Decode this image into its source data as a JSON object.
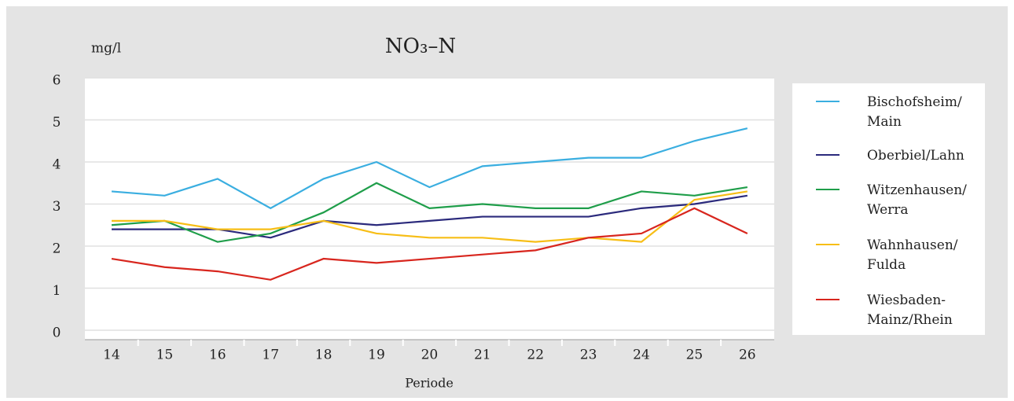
{
  "chart_data": {
    "type": "line",
    "title": "NO₃–N",
    "y_label": "mg/l",
    "x_label": "Periode",
    "categories": [
      "14",
      "15",
      "16",
      "17",
      "18",
      "19",
      "20",
      "21",
      "22",
      "23",
      "24",
      "25",
      "26"
    ],
    "ylim": [
      0,
      6
    ],
    "yticks": [
      0,
      1,
      2,
      3,
      4,
      5,
      6
    ],
    "grid": true,
    "legend": "right",
    "series": [
      {
        "name": "Bischofsheim/\nMain",
        "color": "#3aaee0",
        "values": [
          3.3,
          3.2,
          3.6,
          2.9,
          3.6,
          4.0,
          3.4,
          3.9,
          4.0,
          4.1,
          4.1,
          4.5,
          4.8
        ]
      },
      {
        "name": "Oberbiel/Lahn",
        "color": "#2b2a7c",
        "values": [
          2.4,
          2.4,
          2.4,
          2.2,
          2.6,
          2.5,
          2.6,
          2.7,
          2.7,
          2.7,
          2.9,
          3.0,
          3.2
        ]
      },
      {
        "name": "Witzenhausen/\nWerra",
        "color": "#1f9e4a",
        "values": [
          2.5,
          2.6,
          2.1,
          2.3,
          2.8,
          3.5,
          2.9,
          3.0,
          2.9,
          2.9,
          3.3,
          3.2,
          3.4
        ]
      },
      {
        "name": "Wahnhausen/\nFulda",
        "color": "#f7be16",
        "values": [
          2.6,
          2.6,
          2.4,
          2.4,
          2.6,
          2.3,
          2.2,
          2.2,
          2.1,
          2.2,
          2.1,
          3.1,
          3.3
        ]
      },
      {
        "name": "Wiesbaden-\nMainz/Rhein",
        "color": "#d8261e",
        "values": [
          1.7,
          1.5,
          1.4,
          1.2,
          1.7,
          1.6,
          1.7,
          1.8,
          1.9,
          2.2,
          2.3,
          2.9,
          2.3
        ]
      }
    ]
  }
}
